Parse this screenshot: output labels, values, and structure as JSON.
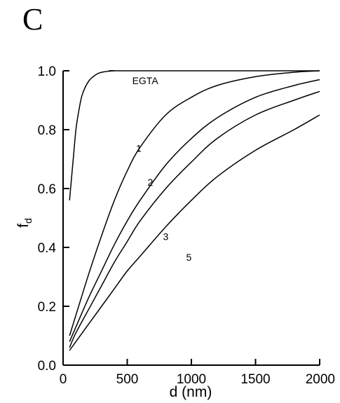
{
  "panel_label": "C",
  "chart_data": {
    "type": "line",
    "title": "",
    "xlabel": "d (nm)",
    "ylabel_main": "f",
    "ylabel_sub": "d",
    "xlim": [
      0,
      2000
    ],
    "ylim": [
      0,
      1.0
    ],
    "xticks": [
      0,
      500,
      1000,
      1500,
      2000
    ],
    "xtick_labels": [
      "0",
      "500",
      "1000",
      "1500",
      "2000"
    ],
    "yticks": [
      0.0,
      0.2,
      0.4,
      0.6,
      0.8,
      1.0
    ],
    "ytick_labels": [
      "0.0",
      "0.2",
      "0.4",
      "0.6",
      "0.8",
      "1.0"
    ],
    "grid": false,
    "series": [
      {
        "name": "EGTA",
        "label_at": [
          640,
          0.955
        ],
        "x": [
          50,
          75,
          100,
          125,
          150,
          200,
          250,
          300,
          400,
          500,
          2000
        ],
        "y": [
          0.56,
          0.68,
          0.8,
          0.87,
          0.92,
          0.965,
          0.985,
          0.995,
          1.0,
          1.0,
          1.0
        ]
      },
      {
        "name": "1",
        "label_at": [
          590,
          0.725
        ],
        "x": [
          50,
          100,
          200,
          300,
          400,
          500,
          600,
          800,
          1000,
          1200,
          1500,
          1800,
          2000
        ],
        "y": [
          0.1,
          0.17,
          0.31,
          0.44,
          0.56,
          0.66,
          0.74,
          0.85,
          0.91,
          0.95,
          0.98,
          0.995,
          1.0
        ]
      },
      {
        "name": "2",
        "label_at": [
          680,
          0.61
        ],
        "x": [
          50,
          100,
          200,
          300,
          400,
          500,
          600,
          800,
          1000,
          1200,
          1500,
          1800,
          2000
        ],
        "y": [
          0.08,
          0.13,
          0.23,
          0.32,
          0.41,
          0.49,
          0.56,
          0.68,
          0.77,
          0.84,
          0.91,
          0.95,
          0.97
        ]
      },
      {
        "name": "3",
        "label_at": [
          800,
          0.425
        ],
        "x": [
          50,
          100,
          200,
          300,
          400,
          500,
          600,
          800,
          1000,
          1200,
          1500,
          1800,
          2000
        ],
        "y": [
          0.06,
          0.11,
          0.19,
          0.27,
          0.35,
          0.42,
          0.49,
          0.6,
          0.69,
          0.77,
          0.85,
          0.9,
          0.93
        ]
      },
      {
        "name": "5",
        "label_at": [
          980,
          0.355
        ],
        "x": [
          50,
          100,
          200,
          300,
          400,
          500,
          600,
          800,
          1000,
          1200,
          1500,
          1800,
          2000
        ],
        "y": [
          0.05,
          0.08,
          0.14,
          0.2,
          0.26,
          0.32,
          0.37,
          0.47,
          0.56,
          0.64,
          0.73,
          0.8,
          0.85
        ]
      }
    ]
  }
}
